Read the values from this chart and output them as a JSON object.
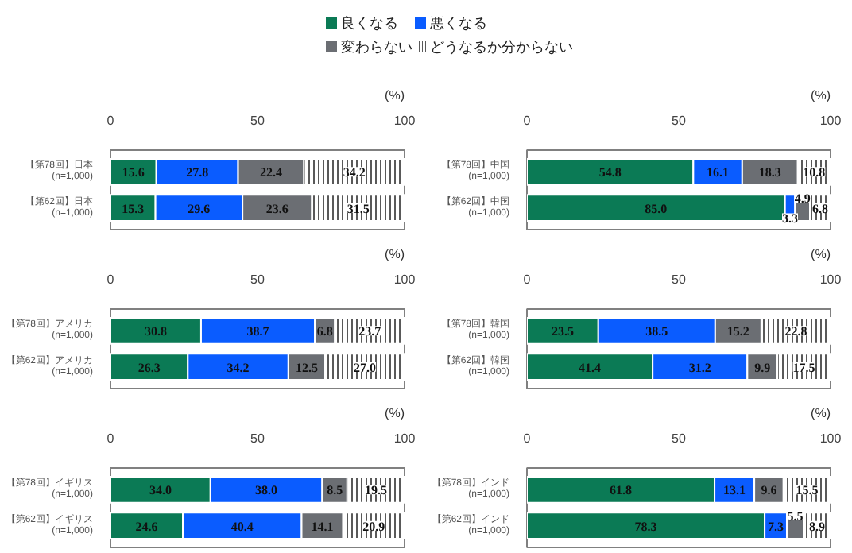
{
  "chart_data": [
    {
      "type": "bar",
      "orientation": "horizontal",
      "stacked": true,
      "categories": [
        "【第78回】日本\n(n=1,000)",
        "【第62回】日本\n(n=1,000)"
      ],
      "xlabel": "(%)",
      "xlim": [
        0,
        100
      ],
      "xticks": [
        0,
        50,
        100
      ],
      "data_labels": true,
      "legend": "top",
      "series": [
        {
          "name": "良くなる",
          "color": "#0b7a55",
          "values": [
            15.6,
            15.3
          ]
        },
        {
          "name": "悪くなる",
          "color": "#0a5cff",
          "values": [
            27.8,
            29.6
          ]
        },
        {
          "name": "変わらない",
          "color": "#6b6e73",
          "values": [
            22.4,
            23.6
          ]
        },
        {
          "name": "どうなるか分からない",
          "color": "#ffffff",
          "values": [
            34.2,
            31.5
          ]
        }
      ]
    },
    {
      "type": "bar",
      "orientation": "horizontal",
      "stacked": true,
      "categories": [
        "【第78回】中国\n(n=1,000)",
        "【第62回】中国\n(n=1,000)"
      ],
      "xlabel": "(%)",
      "xlim": [
        0,
        100
      ],
      "xticks": [
        0,
        50,
        100
      ],
      "data_labels": true,
      "series": [
        {
          "color": "#0b7a55",
          "values": [
            54.8,
            85.0
          ],
          "value_labels": [
            "54.8",
            "85.0"
          ]
        },
        {
          "color": "#0a5cff",
          "values": [
            16.1,
            3.3
          ]
        },
        {
          "color": "#6b6e73",
          "values": [
            18.3,
            4.9
          ]
        },
        {
          "color": "#ffffff",
          "values": [
            10.8,
            6.8
          ]
        }
      ]
    },
    {
      "type": "bar",
      "orientation": "horizontal",
      "stacked": true,
      "categories": [
        "【第78回】アメリカ\n(n=1,000)",
        "【第62回】アメリカ\n(n=1,000)"
      ],
      "xlabel": "(%)",
      "xlim": [
        0,
        100
      ],
      "xticks": [
        0,
        50,
        100
      ],
      "data_labels": true,
      "series": [
        {
          "color": "#0b7a55",
          "values": [
            30.8,
            26.3
          ]
        },
        {
          "color": "#0a5cff",
          "values": [
            38.7,
            34.2
          ]
        },
        {
          "color": "#6b6e73",
          "values": [
            6.8,
            12.5
          ]
        },
        {
          "color": "#ffffff",
          "values": [
            23.7,
            27.0
          ],
          "value_labels": [
            "23.7",
            "27.0"
          ]
        }
      ]
    },
    {
      "type": "bar",
      "orientation": "horizontal",
      "stacked": true,
      "categories": [
        "【第78回】韓国\n(n=1,000)",
        "【第62回】韓国\n(n=1,000)"
      ],
      "xlabel": "(%)",
      "xlim": [
        0,
        100
      ],
      "xticks": [
        0,
        50,
        100
      ],
      "data_labels": true,
      "series": [
        {
          "color": "#0b7a55",
          "values": [
            23.5,
            41.4
          ]
        },
        {
          "color": "#0a5cff",
          "values": [
            38.5,
            31.2
          ]
        },
        {
          "color": "#6b6e73",
          "values": [
            15.2,
            9.9
          ]
        },
        {
          "color": "#ffffff",
          "values": [
            22.8,
            17.5
          ]
        }
      ]
    },
    {
      "type": "bar",
      "orientation": "horizontal",
      "stacked": true,
      "categories": [
        "【第78回】イギリス\n(n=1,000)",
        "【第62回】イギリス\n(n=1,000)"
      ],
      "xlabel": "(%)",
      "xlim": [
        0,
        100
      ],
      "xticks": [
        0,
        50,
        100
      ],
      "data_labels": true,
      "series": [
        {
          "color": "#0b7a55",
          "values": [
            34.0,
            24.6
          ],
          "value_labels": [
            "34.0",
            "24.6"
          ]
        },
        {
          "color": "#0a5cff",
          "values": [
            38.0,
            40.4
          ],
          "value_labels": [
            "38.0",
            "40.4"
          ]
        },
        {
          "color": "#6b6e73",
          "values": [
            8.5,
            14.1
          ]
        },
        {
          "color": "#ffffff",
          "values": [
            19.5,
            20.9
          ]
        }
      ]
    },
    {
      "type": "bar",
      "orientation": "horizontal",
      "stacked": true,
      "categories": [
        "【第78回】インド\n(n=1,000)",
        "【第62回】インド\n(n=1,000)"
      ],
      "xlabel": "(%)",
      "xlim": [
        0,
        100
      ],
      "xticks": [
        0,
        50,
        100
      ],
      "data_labels": true,
      "series": [
        {
          "color": "#0b7a55",
          "values": [
            61.8,
            78.3
          ]
        },
        {
          "color": "#0a5cff",
          "values": [
            13.1,
            7.3
          ]
        },
        {
          "color": "#6b6e73",
          "values": [
            9.6,
            5.5
          ]
        },
        {
          "color": "#ffffff",
          "values": [
            15.5,
            8.9
          ]
        }
      ]
    }
  ]
}
